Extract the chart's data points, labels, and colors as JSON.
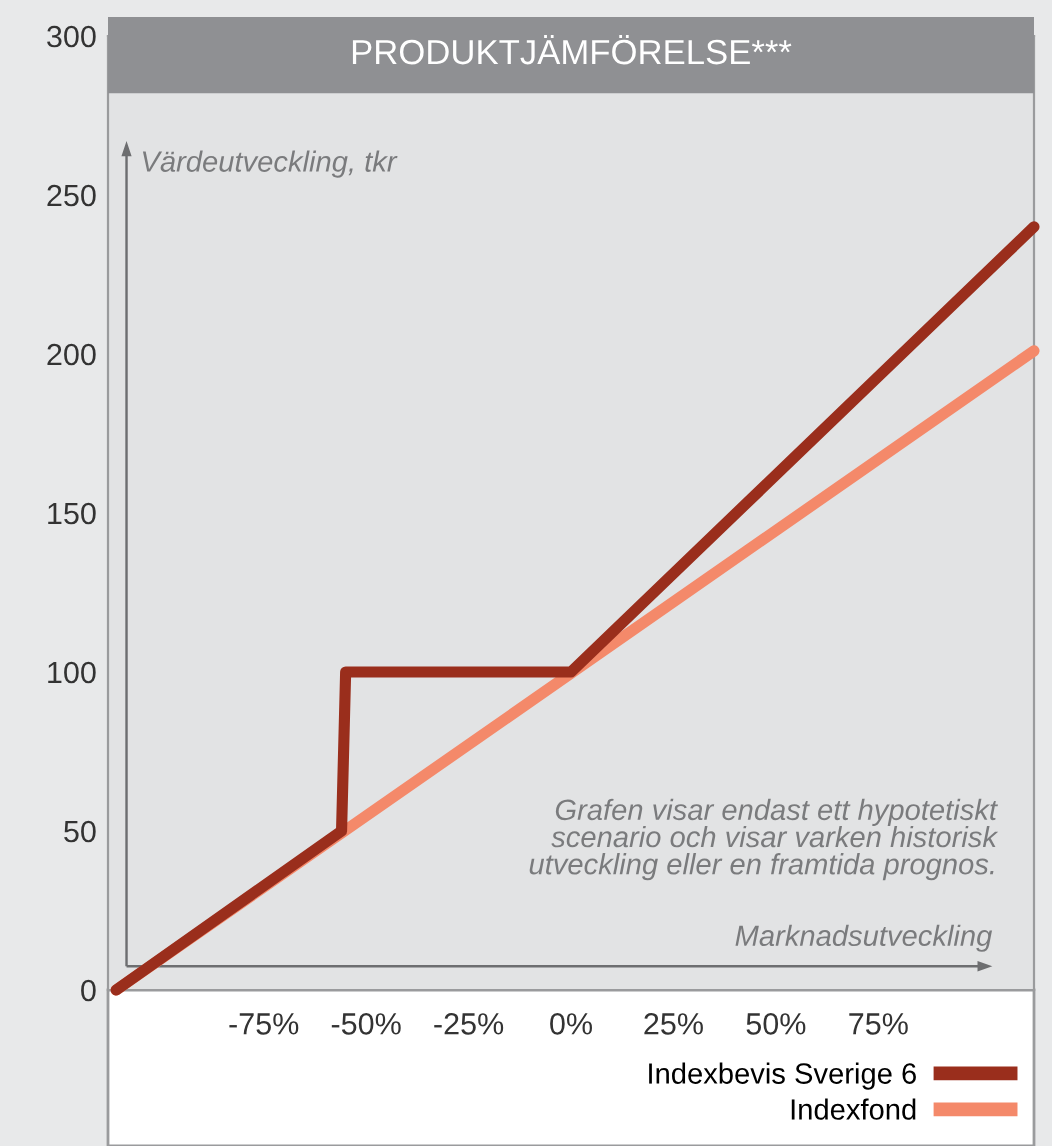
{
  "chart_data": {
    "type": "line",
    "title": "PRODUKTJÄMFÖRELSE***",
    "ylabel": "Värdeutveckling, tkr",
    "xlabel": "Marknadsutveckling",
    "xlim": [
      -113,
      113
    ],
    "ylim": [
      0,
      300
    ],
    "xticks": [
      {
        "value": -75,
        "label": "-75%"
      },
      {
        "value": -50,
        "label": "-50%"
      },
      {
        "value": -25,
        "label": "-25%"
      },
      {
        "value": 0,
        "label": "0%"
      },
      {
        "value": 25,
        "label": "25%"
      },
      {
        "value": 50,
        "label": "50%"
      },
      {
        "value": 75,
        "label": "75%"
      }
    ],
    "yticks": [
      0,
      50,
      100,
      150,
      200,
      250,
      300
    ],
    "series": [
      {
        "name": "Indexbevis Sverige 6",
        "color": "#9a2e1c",
        "x": [
          -111,
          -56,
          -55,
          0,
          113
        ],
        "values": [
          0,
          50,
          100,
          100,
          240
        ]
      },
      {
        "name": "Indexfond",
        "color": "#f4896a",
        "x": [
          -111,
          113
        ],
        "values": [
          0,
          201
        ]
      }
    ],
    "annotations": [
      "Grafen visar endast ett hypotetiskt\nscenario och visar varken historisk\nutveckling eller en framtida prognos."
    ],
    "legend": "bottom right",
    "grid": false,
    "marker": "none",
    "line_style": "solid"
  }
}
